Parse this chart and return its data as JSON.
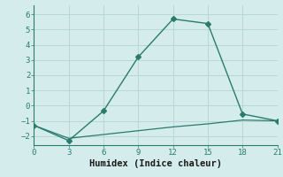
{
  "line1_x": [
    0,
    3,
    6,
    9,
    12,
    15,
    18,
    21
  ],
  "line1_y": [
    -1.3,
    -2.3,
    -0.35,
    3.2,
    5.7,
    5.4,
    -0.55,
    -1.0
  ],
  "line2_x": [
    0,
    3,
    6,
    9,
    12,
    15,
    18,
    21
  ],
  "line2_y": [
    -1.3,
    -2.15,
    -1.9,
    -1.65,
    -1.4,
    -1.2,
    -0.95,
    -1.0
  ],
  "line_color": "#2a7a6e",
  "marker": "D",
  "marker_size": 3,
  "xlabel": "Humidex (Indice chaleur)",
  "xlim": [
    0,
    21
  ],
  "ylim": [
    -2.6,
    6.6
  ],
  "xticks": [
    0,
    3,
    6,
    9,
    12,
    15,
    18,
    21
  ],
  "yticks": [
    -2,
    -1,
    0,
    1,
    2,
    3,
    4,
    5,
    6
  ],
  "bg_color": "#d4edec",
  "grid_color": "#b8d8d6",
  "spine_color": "#2a7a6e",
  "tick_label_fontsize": 6.5,
  "xlabel_fontsize": 7.5
}
